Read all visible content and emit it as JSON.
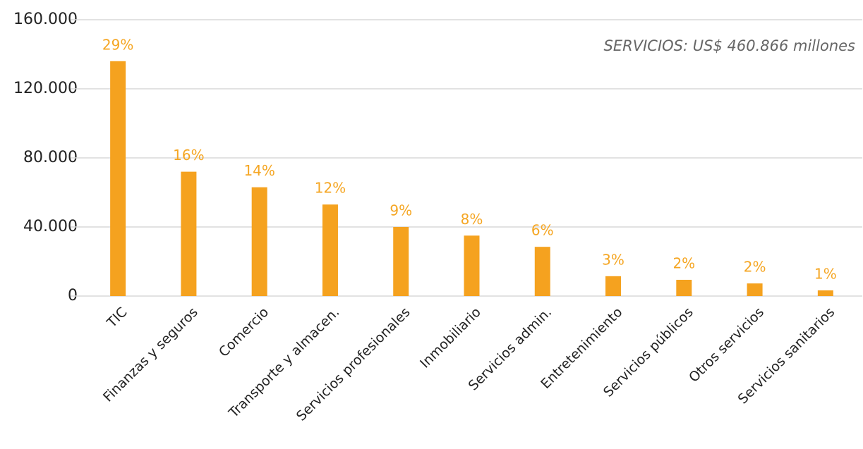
{
  "chart_data": {
    "type": "bar",
    "annotation": "SERVICIOS: US$ 460.866 millones",
    "categories": [
      "TIC",
      "Finanzas y seguros",
      "Comercio",
      "Transporte y almacen.",
      "Servicios profesionales",
      "Inmobiliario",
      "Servicios admin.",
      "Entretenimiento",
      "Servicios públicos",
      "Otros servicios",
      "Servicios sanitarios"
    ],
    "values": [
      136000,
      72000,
      63000,
      53000,
      40000,
      35000,
      28500,
      11500,
      9400,
      7300,
      3300
    ],
    "bar_labels": [
      "29%",
      "16%",
      "14%",
      "12%",
      "9%",
      "8%",
      "6%",
      "3%",
      "2%",
      "2%",
      "1%"
    ],
    "color": "#f5a21f",
    "ylim": [
      0,
      160000
    ],
    "yticks": [
      0,
      {
        "value": 40000,
        "label": "40.000"
      },
      {
        "value": 80000,
        "label": "80.000"
      },
      {
        "value": 120000,
        "label": "120.000"
      },
      {
        "value": 160000,
        "label": "160.000"
      }
    ],
    "grid": true
  }
}
